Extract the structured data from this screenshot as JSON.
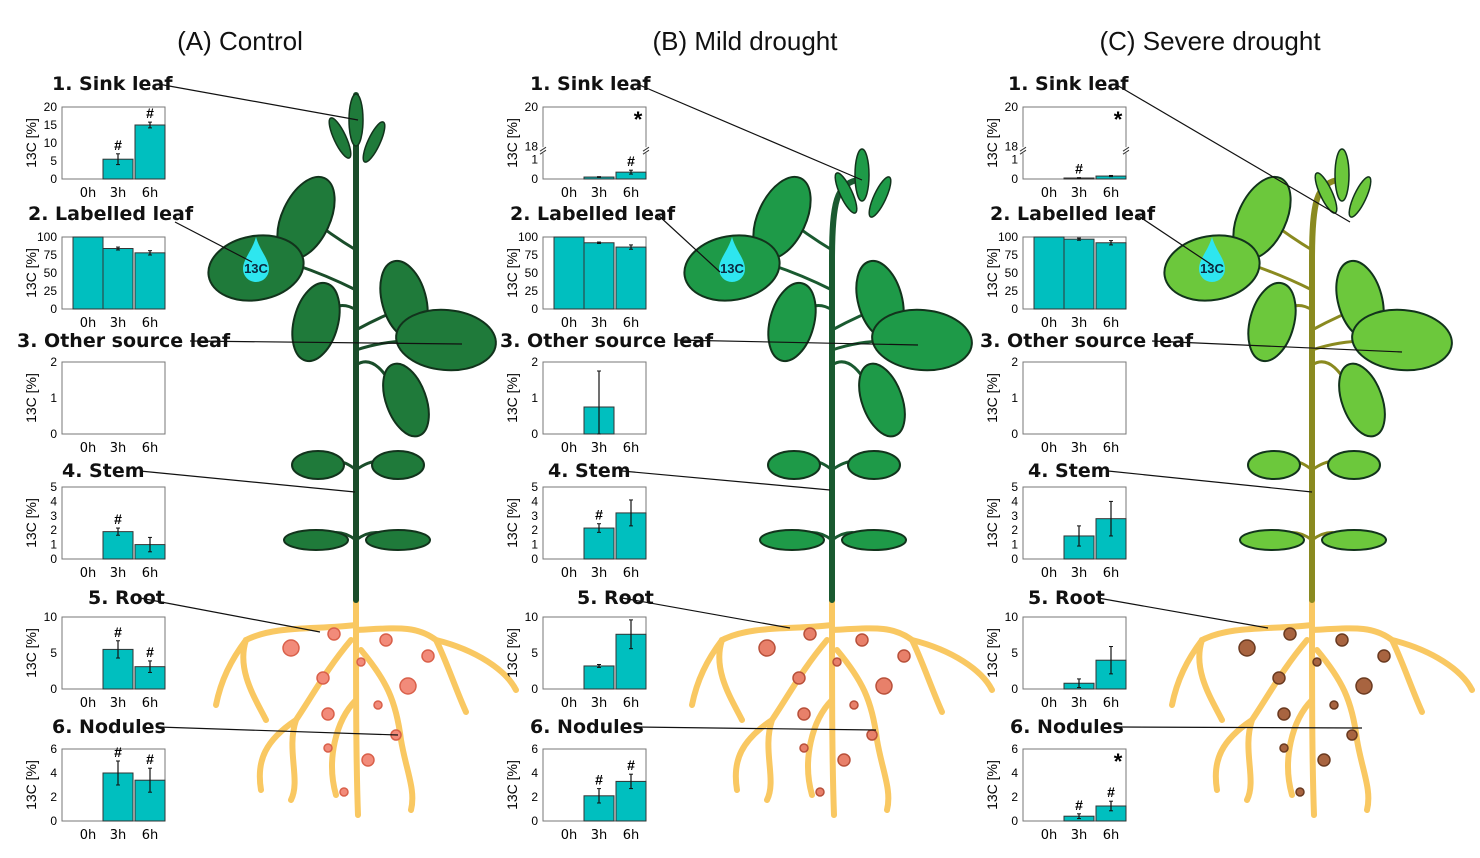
{
  "columns": [
    {
      "title": "(A) Control"
    },
    {
      "title": "(B) Mild drought"
    },
    {
      "title": "(C) Severe drought"
    }
  ],
  "row_labels": [
    "1. Sink leaf",
    "2. Labelled leaf",
    "3. Other source leaf",
    "4. Stem",
    "5. Root",
    "6. Nodules"
  ],
  "drop_label": "13C",
  "colors": {
    "bar": "#00bfbf",
    "leaf_control": "#1f7a3a",
    "leaf_mild": "#1e9a48",
    "leaf_severe": "#6cc83c",
    "root": "#f9c862",
    "drop": "#2ee6ef"
  },
  "chart_data": [
    {
      "type": "bar",
      "condition": "Control",
      "organ": "Sink leaf",
      "categories": [
        "0h",
        "3h",
        "6h"
      ],
      "values": [
        0,
        5.5,
        15
      ],
      "errors": [
        0,
        1.5,
        0.8
      ],
      "marks": [
        "",
        "#",
        "#"
      ],
      "star": "",
      "ylabel": "13C [%]",
      "ylim": [
        0,
        20
      ],
      "yticks": [
        0,
        5,
        10,
        15,
        20
      ]
    },
    {
      "type": "bar",
      "condition": "Control",
      "organ": "Labelled leaf",
      "categories": [
        "0h",
        "3h",
        "6h"
      ],
      "values": [
        100,
        84,
        78
      ],
      "errors": [
        0,
        2,
        3
      ],
      "marks": [
        "",
        "",
        ""
      ],
      "star": "",
      "ylabel": "13C [%]",
      "ylim": [
        0,
        100
      ],
      "yticks": [
        0,
        25,
        50,
        75,
        100
      ]
    },
    {
      "type": "bar",
      "condition": "Control",
      "organ": "Other source leaf",
      "categories": [
        "0h",
        "3h",
        "6h"
      ],
      "values": [
        0,
        0,
        0
      ],
      "errors": [
        0,
        0,
        0
      ],
      "marks": [
        "",
        "",
        ""
      ],
      "star": "",
      "ylabel": "13C [%]",
      "ylim": [
        0,
        2
      ],
      "yticks": [
        0,
        1,
        2
      ]
    },
    {
      "type": "bar",
      "condition": "Control",
      "organ": "Stem",
      "categories": [
        "0h",
        "3h",
        "6h"
      ],
      "values": [
        0,
        1.9,
        1.0
      ],
      "errors": [
        0,
        0.25,
        0.5
      ],
      "marks": [
        "",
        "#",
        ""
      ],
      "star": "",
      "ylabel": "13C [%]",
      "ylim": [
        0,
        5
      ],
      "yticks": [
        0,
        1,
        2,
        3,
        4,
        5
      ]
    },
    {
      "type": "bar",
      "condition": "Control",
      "organ": "Root",
      "categories": [
        "0h",
        "3h",
        "6h"
      ],
      "values": [
        0,
        5.5,
        3.1
      ],
      "errors": [
        0,
        1.2,
        0.8
      ],
      "marks": [
        "",
        "#",
        "#"
      ],
      "star": "",
      "ylabel": "13C [%]",
      "ylim": [
        0,
        10
      ],
      "yticks": [
        0,
        5,
        10
      ]
    },
    {
      "type": "bar",
      "condition": "Control",
      "organ": "Nodules",
      "categories": [
        "0h",
        "3h",
        "6h"
      ],
      "values": [
        0,
        4.0,
        3.4
      ],
      "errors": [
        0,
        1.0,
        1.0
      ],
      "marks": [
        "",
        "#",
        "#"
      ],
      "star": "",
      "ylabel": "13C [%]",
      "ylim": [
        0,
        6
      ],
      "yticks": [
        0,
        2,
        4,
        6
      ]
    },
    {
      "type": "bar",
      "condition": "Mild drought",
      "organ": "Sink leaf",
      "categories": [
        "0h",
        "3h",
        "6h"
      ],
      "values": [
        0,
        0.1,
        0.35
      ],
      "errors": [
        0,
        0.02,
        0.1
      ],
      "marks": [
        "",
        "",
        "#"
      ],
      "star": "*",
      "ylabel": "13C [%]",
      "ylim": [
        0,
        20
      ],
      "yticks": [
        0,
        1,
        18,
        20
      ],
      "axis_break": [
        1.3,
        18
      ]
    },
    {
      "type": "bar",
      "condition": "Mild drought",
      "organ": "Labelled leaf",
      "categories": [
        "0h",
        "3h",
        "6h"
      ],
      "values": [
        100,
        92,
        86
      ],
      "errors": [
        0,
        1,
        3
      ],
      "marks": [
        "",
        "",
        ""
      ],
      "star": "",
      "ylabel": "13C [%]",
      "ylim": [
        0,
        100
      ],
      "yticks": [
        0,
        25,
        50,
        75,
        100
      ]
    },
    {
      "type": "bar",
      "condition": "Mild drought",
      "organ": "Other source leaf",
      "categories": [
        "0h",
        "3h",
        "6h"
      ],
      "values": [
        0,
        0.75,
        0
      ],
      "errors": [
        0,
        1.0,
        0
      ],
      "marks": [
        "",
        "",
        ""
      ],
      "star": "",
      "ylabel": "13C [%]",
      "ylim": [
        0,
        2
      ],
      "yticks": [
        0,
        1,
        2
      ]
    },
    {
      "type": "bar",
      "condition": "Mild drought",
      "organ": "Stem",
      "categories": [
        "0h",
        "3h",
        "6h"
      ],
      "values": [
        0,
        2.15,
        3.2
      ],
      "errors": [
        0,
        0.3,
        0.9
      ],
      "marks": [
        "",
        "#",
        ""
      ],
      "star": "",
      "ylabel": "13C [%]",
      "ylim": [
        0,
        5
      ],
      "yticks": [
        0,
        1,
        2,
        3,
        4,
        5
      ]
    },
    {
      "type": "bar",
      "condition": "Mild drought",
      "organ": "Root",
      "categories": [
        "0h",
        "3h",
        "6h"
      ],
      "values": [
        0,
        3.2,
        7.6
      ],
      "errors": [
        0,
        0.2,
        2.0
      ],
      "marks": [
        "",
        "",
        ""
      ],
      "star": "",
      "ylabel": "13C [%]",
      "ylim": [
        0,
        10
      ],
      "yticks": [
        0,
        5,
        10
      ]
    },
    {
      "type": "bar",
      "condition": "Mild drought",
      "organ": "Nodules",
      "categories": [
        "0h",
        "3h",
        "6h"
      ],
      "values": [
        0,
        2.1,
        3.3
      ],
      "errors": [
        0,
        0.6,
        0.6
      ],
      "marks": [
        "",
        "#",
        "#"
      ],
      "star": "",
      "ylabel": "13C [%]",
      "ylim": [
        0,
        6
      ],
      "yticks": [
        0,
        2,
        4,
        6
      ]
    },
    {
      "type": "bar",
      "condition": "Severe drought",
      "organ": "Sink leaf",
      "categories": [
        "0h",
        "3h",
        "6h"
      ],
      "values": [
        0,
        0.05,
        0.15
      ],
      "errors": [
        0,
        0.02,
        0.03
      ],
      "marks": [
        "",
        "#",
        ""
      ],
      "star": "*",
      "ylabel": "13C [%]",
      "ylim": [
        0,
        20
      ],
      "yticks": [
        0,
        1,
        18,
        20
      ],
      "axis_break": [
        1.3,
        18
      ]
    },
    {
      "type": "bar",
      "condition": "Severe drought",
      "organ": "Labelled leaf",
      "categories": [
        "0h",
        "3h",
        "6h"
      ],
      "values": [
        100,
        97,
        92
      ],
      "errors": [
        0,
        1.5,
        3
      ],
      "marks": [
        "",
        "",
        ""
      ],
      "star": "",
      "ylabel": "13C [%]",
      "ylim": [
        0,
        100
      ],
      "yticks": [
        0,
        25,
        50,
        75,
        100
      ]
    },
    {
      "type": "bar",
      "condition": "Severe drought",
      "organ": "Other source leaf",
      "categories": [
        "0h",
        "3h",
        "6h"
      ],
      "values": [
        0,
        0,
        0
      ],
      "errors": [
        0,
        0,
        0
      ],
      "marks": [
        "",
        "",
        ""
      ],
      "star": "",
      "ylabel": "13C [%]",
      "ylim": [
        0,
        2
      ],
      "yticks": [
        0,
        1,
        2
      ]
    },
    {
      "type": "bar",
      "condition": "Severe drought",
      "organ": "Stem",
      "categories": [
        "0h",
        "3h",
        "6h"
      ],
      "values": [
        0,
        1.6,
        2.8
      ],
      "errors": [
        0,
        0.7,
        1.2
      ],
      "marks": [
        "",
        "",
        ""
      ],
      "star": "",
      "ylabel": "13C [%]",
      "ylim": [
        0,
        5
      ],
      "yticks": [
        0,
        1,
        2,
        3,
        4,
        5
      ]
    },
    {
      "type": "bar",
      "condition": "Severe drought",
      "organ": "Root",
      "categories": [
        "0h",
        "3h",
        "6h"
      ],
      "values": [
        0,
        0.8,
        4.0
      ],
      "errors": [
        0,
        0.6,
        1.9
      ],
      "marks": [
        "",
        "",
        ""
      ],
      "star": "",
      "ylabel": "13C [%]",
      "ylim": [
        0,
        10
      ],
      "yticks": [
        0,
        5,
        10
      ]
    },
    {
      "type": "bar",
      "condition": "Severe drought",
      "organ": "Nodules",
      "categories": [
        "0h",
        "3h",
        "6h"
      ],
      "values": [
        0,
        0.4,
        1.25
      ],
      "errors": [
        0,
        0.2,
        0.4
      ],
      "marks": [
        "",
        "#",
        "#"
      ],
      "star": "*",
      "ylabel": "13C [%]",
      "ylim": [
        0,
        6
      ],
      "yticks": [
        0,
        2,
        4,
        6
      ]
    }
  ]
}
